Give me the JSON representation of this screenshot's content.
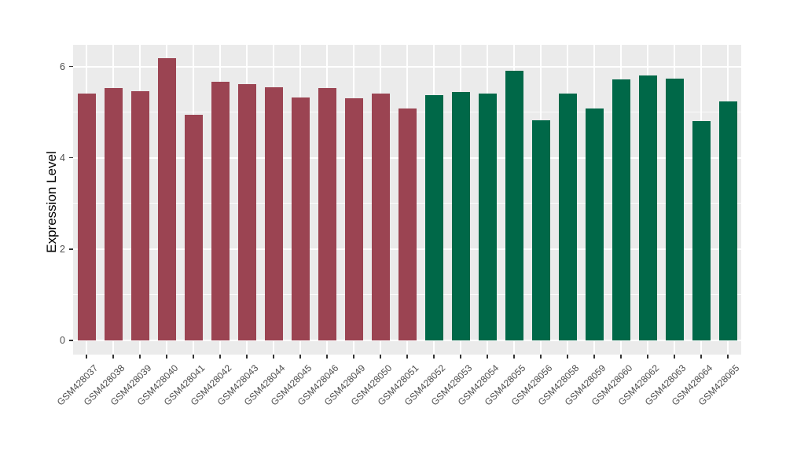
{
  "chart_data": {
    "type": "bar",
    "title": "",
    "xlabel": "",
    "ylabel": "Expression Level",
    "yticks": [
      0,
      2,
      4,
      6
    ],
    "minor_yticks": [
      1,
      3,
      5
    ],
    "ylim": [
      -0.31,
      6.48
    ],
    "legend_position": "none",
    "grid": {
      "panel_bg": "#EBEBEB",
      "line_color": "#FFFFFF",
      "horizontal_major": true,
      "horizontal_minor": true,
      "vertical_major_at_categories": true
    },
    "group_colors": [
      "#9B4452",
      "#006848"
    ],
    "bars": [
      {
        "label": "GSM428037",
        "value": 5.41,
        "group": 0
      },
      {
        "label": "GSM428038",
        "value": 5.53,
        "group": 0
      },
      {
        "label": "GSM428039",
        "value": 5.47,
        "group": 0
      },
      {
        "label": "GSM428040",
        "value": 6.18,
        "group": 0
      },
      {
        "label": "GSM428041",
        "value": 4.94,
        "group": 0
      },
      {
        "label": "GSM428042",
        "value": 5.67,
        "group": 0
      },
      {
        "label": "GSM428043",
        "value": 5.61,
        "group": 0
      },
      {
        "label": "GSM428044",
        "value": 5.55,
        "group": 0
      },
      {
        "label": "GSM428045",
        "value": 5.33,
        "group": 0
      },
      {
        "label": "GSM428046",
        "value": 5.54,
        "group": 0
      },
      {
        "label": "GSM428049",
        "value": 5.3,
        "group": 0
      },
      {
        "label": "GSM428050",
        "value": 5.41,
        "group": 0
      },
      {
        "label": "GSM428051",
        "value": 5.08,
        "group": 0
      },
      {
        "label": "GSM428052",
        "value": 5.37,
        "group": 1
      },
      {
        "label": "GSM428053",
        "value": 5.45,
        "group": 1
      },
      {
        "label": "GSM428054",
        "value": 5.41,
        "group": 1
      },
      {
        "label": "GSM428055",
        "value": 5.91,
        "group": 1
      },
      {
        "label": "GSM428056",
        "value": 4.82,
        "group": 1
      },
      {
        "label": "GSM428058",
        "value": 5.41,
        "group": 1
      },
      {
        "label": "GSM428059",
        "value": 5.09,
        "group": 1
      },
      {
        "label": "GSM428060",
        "value": 5.73,
        "group": 1
      },
      {
        "label": "GSM428062",
        "value": 5.8,
        "group": 1
      },
      {
        "label": "GSM428063",
        "value": 5.74,
        "group": 1
      },
      {
        "label": "GSM428064",
        "value": 4.8,
        "group": 1
      },
      {
        "label": "GSM428065",
        "value": 5.24,
        "group": 1
      }
    ]
  }
}
